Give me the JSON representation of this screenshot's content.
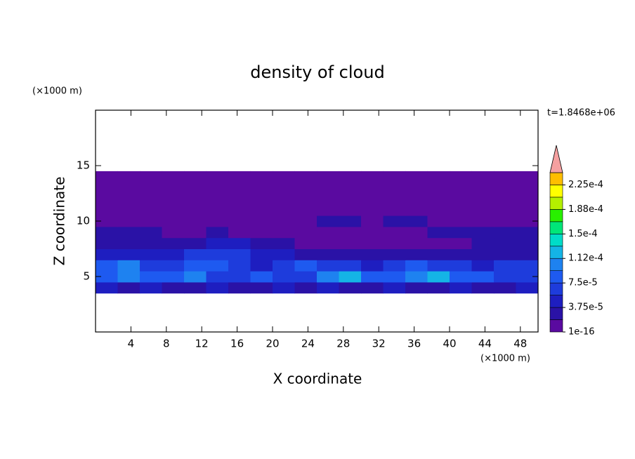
{
  "chart_data": {
    "type": "contour",
    "title": "density of cloud",
    "time_label": "t=1.8468e+06",
    "x_label": "X coordinate",
    "y_label": "Z coordinate",
    "x_unit": "(×1000 m)",
    "y_unit": "(×1000 m)",
    "xlim": [
      0,
      50
    ],
    "ylim": [
      0,
      20
    ],
    "xticks": [
      4,
      8,
      12,
      16,
      20,
      24,
      28,
      32,
      36,
      40,
      44,
      48
    ],
    "yticks": [
      5,
      10,
      15
    ],
    "field": {
      "x_edges": [
        0,
        2.5,
        5,
        7.5,
        10,
        12.5,
        15,
        17.5,
        20,
        22.5,
        25,
        27.5,
        30,
        32.5,
        35,
        37.5,
        40,
        42.5,
        45,
        47.5,
        50
      ],
      "z_edges": [
        3.5,
        4.5,
        5.5,
        6.5,
        7.5,
        8.5,
        9.5,
        10.5,
        11.5,
        12.5,
        13.5,
        14.5
      ],
      "values": [
        [
          4e-05,
          3e-05,
          4e-05,
          3e-05,
          3e-05,
          4e-05,
          3e-05,
          3e-05,
          4e-05,
          3e-05,
          4e-05,
          3e-05,
          3e-05,
          4e-05,
          3e-05,
          3e-05,
          4e-05,
          3e-05,
          3e-05,
          4e-05
        ],
        [
          9e-05,
          0.00011,
          8e-05,
          9e-05,
          0.0001,
          7e-05,
          6e-05,
          8e-05,
          7e-05,
          6e-05,
          0.00011,
          0.00013,
          9e-05,
          8e-05,
          0.0001,
          0.000115,
          9e-05,
          8e-05,
          7e-05,
          6e-05
        ],
        [
          8e-05,
          0.0001,
          7e-05,
          6e-05,
          8e-05,
          9e-05,
          6e-05,
          5e-05,
          7e-05,
          8e-05,
          6e-05,
          7e-05,
          5e-05,
          6e-05,
          8e-05,
          7e-05,
          6e-05,
          5e-05,
          6e-05,
          7e-05
        ],
        [
          4e-05,
          5e-05,
          4e-05,
          5e-05,
          6e-05,
          6e-05,
          6e-05,
          5e-05,
          4e-05,
          3e-05,
          3e-05,
          2.5e-05,
          2.5e-05,
          2.5e-05,
          3e-05,
          2.5e-05,
          2.5e-05,
          3e-05,
          2.5e-05,
          2.5e-05
        ],
        [
          2.5e-05,
          2.5e-05,
          2e-05,
          2.5e-05,
          3e-05,
          4e-05,
          4e-05,
          3e-05,
          2e-05,
          1e-05,
          1e-05,
          1e-05,
          1e-05,
          1e-05,
          1e-05,
          1e-05,
          1e-05,
          2e-05,
          2.5e-05,
          2.5e-05
        ],
        [
          2e-05,
          2.5e-05,
          2e-05,
          1e-05,
          1e-05,
          2e-05,
          1e-05,
          1e-05,
          1e-05,
          1e-05,
          1e-05,
          1e-05,
          1e-05,
          1e-05,
          1e-05,
          2e-05,
          2e-05,
          2e-05,
          2e-05,
          2e-05
        ],
        [
          1e-05,
          1e-05,
          1e-05,
          1e-05,
          1e-05,
          1e-05,
          1e-05,
          1e-05,
          1e-05,
          1e-05,
          2e-05,
          2e-05,
          1e-05,
          2e-05,
          2e-05,
          1e-05,
          1e-05,
          1e-05,
          1e-05,
          1e-05
        ],
        [
          1e-05,
          1e-05,
          1e-05,
          1e-05,
          1e-05,
          1e-05,
          1e-05,
          1e-05,
          1e-05,
          1e-05,
          1e-05,
          1e-05,
          1e-05,
          1e-05,
          1e-05,
          1e-05,
          1e-05,
          1e-05,
          1e-05,
          1e-05
        ],
        [
          1e-05,
          1e-05,
          1e-05,
          1e-05,
          1e-05,
          1e-05,
          1e-05,
          1e-05,
          1e-05,
          1e-05,
          1e-05,
          1e-05,
          1e-05,
          1e-05,
          1e-05,
          1e-05,
          1e-05,
          1e-05,
          1e-05,
          1e-05
        ],
        [
          1e-05,
          1e-05,
          1e-05,
          1e-05,
          1e-05,
          1e-05,
          1e-05,
          1e-05,
          1e-05,
          1e-05,
          1e-05,
          1e-05,
          1e-05,
          1e-05,
          1e-05,
          1e-05,
          1e-05,
          1e-05,
          1e-05,
          1e-05
        ],
        [
          1e-05,
          1e-05,
          1e-05,
          1e-05,
          1e-05,
          1e-05,
          1e-05,
          1e-05,
          1e-05,
          1e-05,
          1e-05,
          1e-05,
          1e-05,
          1e-05,
          1e-05,
          1e-05,
          1e-05,
          1e-05,
          1e-05,
          1e-05
        ]
      ]
    },
    "colorbar": {
      "levels": [
        1e-16,
        1.875e-05,
        3.75e-05,
        5.625e-05,
        7.5e-05,
        9.375e-05,
        0.0001125,
        0.00013125,
        0.00015,
        0.00016875,
        0.0001875,
        0.00020625,
        0.000225,
        0.00024375
      ],
      "colors": [
        "#5a0aa0",
        "#2a12a6",
        "#1e1ec0",
        "#1e3cdc",
        "#1e5af0",
        "#1e82f0",
        "#14b4e6",
        "#00dcc8",
        "#00e678",
        "#28f000",
        "#b4f000",
        "#ffff00",
        "#ffbe00",
        "#ff7800",
        "#ff2800"
      ],
      "extend_color": "#f5a0a0",
      "ticks": [
        {
          "value": 1e-16,
          "label": "1e-16"
        },
        {
          "value": 3.75e-05,
          "label": "3.75e-5"
        },
        {
          "value": 7.5e-05,
          "label": "7.5e-5"
        },
        {
          "value": 0.0001125,
          "label": "1.12e-4"
        },
        {
          "value": 0.00015,
          "label": "1.5e-4"
        },
        {
          "value": 0.0001875,
          "label": "1.88e-4"
        },
        {
          "value": 0.000225,
          "label": "2.25e-4"
        }
      ]
    }
  }
}
